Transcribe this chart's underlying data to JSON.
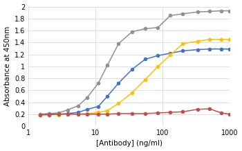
{
  "title": "",
  "xlabel": "[Antibody] (ng/ml)",
  "ylabel": "Absorbance at 450nm",
  "xlim": [
    1,
    1000
  ],
  "ylim": [
    0,
    2
  ],
  "yticks": [
    0,
    0.2,
    0.4,
    0.6,
    0.8,
    1.0,
    1.2,
    1.4,
    1.6,
    1.8,
    2.0
  ],
  "background_color": "#ffffff",
  "grid_color": "#d0d0d0",
  "series": [
    {
      "color": "#909090",
      "x": [
        1.5,
        2.0,
        2.8,
        3.8,
        5.5,
        7.5,
        11,
        15,
        22,
        35,
        55,
        85,
        130,
        200,
        330,
        500,
        750,
        1000
      ],
      "y": [
        0.2,
        0.21,
        0.22,
        0.27,
        0.34,
        0.48,
        0.72,
        1.02,
        1.38,
        1.58,
        1.63,
        1.65,
        1.85,
        1.88,
        1.91,
        1.92,
        1.93,
        1.93
      ]
    },
    {
      "color": "#4472C4",
      "x": [
        1.5,
        2.0,
        2.8,
        3.8,
        5.5,
        7.5,
        11,
        15,
        22,
        35,
        55,
        85,
        130,
        200,
        330,
        500,
        750,
        1000
      ],
      "y": [
        0.19,
        0.2,
        0.2,
        0.21,
        0.23,
        0.28,
        0.33,
        0.5,
        0.72,
        0.95,
        1.12,
        1.18,
        1.22,
        1.26,
        1.28,
        1.29,
        1.29,
        1.29
      ]
    },
    {
      "color": "#FFC000",
      "x": [
        1.5,
        2.0,
        2.8,
        3.8,
        5.5,
        7.5,
        11,
        15,
        22,
        35,
        55,
        85,
        130,
        200,
        330,
        500,
        750,
        1000
      ],
      "y": [
        0.19,
        0.19,
        0.19,
        0.2,
        0.2,
        0.21,
        0.23,
        0.26,
        0.38,
        0.56,
        0.78,
        1.0,
        1.19,
        1.38,
        1.42,
        1.45,
        1.45,
        1.45
      ]
    },
    {
      "color": "#C0504D",
      "x": [
        1.5,
        2.0,
        2.8,
        3.8,
        5.5,
        7.5,
        11,
        15,
        22,
        35,
        55,
        85,
        130,
        200,
        330,
        500,
        750,
        1000
      ],
      "y": [
        0.19,
        0.19,
        0.2,
        0.2,
        0.2,
        0.2,
        0.2,
        0.2,
        0.21,
        0.21,
        0.21,
        0.22,
        0.23,
        0.24,
        0.28,
        0.29,
        0.22,
        0.2
      ]
    }
  ]
}
